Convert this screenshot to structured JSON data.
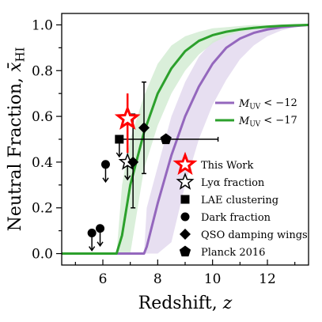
{
  "chart_data": {
    "type": "line",
    "xlabel": "Redshift, z",
    "ylabel": "Neutral Fraction, x̄_HI",
    "xlim": [
      4.5,
      13.5
    ],
    "ylim": [
      -0.05,
      1.05
    ],
    "x_ticks": [
      6,
      8,
      10,
      12
    ],
    "x_tick_labels": [
      "6",
      "8",
      "10",
      "12"
    ],
    "y_ticks": [
      0.0,
      0.2,
      0.4,
      0.6,
      0.8,
      1.0
    ],
    "y_tick_labels": [
      "0.0",
      "0.2",
      "0.4",
      "0.6",
      "0.8",
      "1.0"
    ],
    "grid": false,
    "series": [
      {
        "name": "M_UV < −12",
        "color": "#9467bd",
        "band_color": "#e3d9ee",
        "x": [
          4.5,
          7.5,
          7.6,
          8.0,
          8.5,
          9.0,
          9.5,
          10.0,
          10.5,
          11.0,
          11.5,
          12.0,
          12.5,
          13.0,
          13.5
        ],
        "y": [
          0.0,
          0.0,
          0.03,
          0.22,
          0.43,
          0.6,
          0.73,
          0.83,
          0.9,
          0.94,
          0.965,
          0.98,
          0.99,
          0.995,
          1.0
        ],
        "band_lower": [
          0.0,
          0.0,
          0.0,
          0.0,
          0.05,
          0.3,
          0.5,
          0.65,
          0.76,
          0.85,
          0.91,
          0.95,
          0.975,
          0.99,
          1.0
        ],
        "band_upper": [
          0.0,
          0.0,
          0.2,
          0.38,
          0.6,
          0.75,
          0.86,
          0.93,
          0.96,
          0.98,
          0.99,
          0.995,
          1.0,
          1.0,
          1.0
        ]
      },
      {
        "name": "M_UV < −17",
        "color": "#2ca02c",
        "band_color": "#d3ecd3",
        "x": [
          4.5,
          6.5,
          6.7,
          7.0,
          7.5,
          8.0,
          8.5,
          9.0,
          9.5,
          10.0,
          10.5,
          11.0,
          11.5,
          12.0,
          12.5,
          13.0,
          13.5
        ],
        "y": [
          0.0,
          0.0,
          0.08,
          0.3,
          0.53,
          0.7,
          0.81,
          0.885,
          0.93,
          0.955,
          0.97,
          0.98,
          0.987,
          0.992,
          0.996,
          0.998,
          1.0
        ],
        "band_lower": [
          0.0,
          0.0,
          0.0,
          0.0,
          0.37,
          0.56,
          0.7,
          0.8,
          0.87,
          0.92,
          0.95,
          0.97,
          0.98,
          0.99,
          0.995,
          0.998,
          1.0
        ],
        "band_upper": [
          0.0,
          0.0,
          0.3,
          0.5,
          0.69,
          0.83,
          0.91,
          0.95,
          0.97,
          0.985,
          0.99,
          0.995,
          1.0,
          1.0,
          1.0,
          1.0,
          1.0
        ]
      }
    ],
    "points": [
      {
        "category": "This Work",
        "marker": "star-red",
        "x": 6.9,
        "y": 0.59,
        "yerr_low": 0.15,
        "yerr_high": 0.11
      },
      {
        "category": "Lyα fraction",
        "marker": "star-open",
        "x": 6.9,
        "y": 0.4,
        "upper": true
      },
      {
        "category": "LAE clustering",
        "marker": "square",
        "x": 6.6,
        "y": 0.5,
        "upper": true
      },
      {
        "category": "Dark fraction",
        "marker": "circle",
        "x": 5.6,
        "y": 0.09,
        "upper": true
      },
      {
        "category": "Dark fraction",
        "marker": "circle",
        "x": 5.9,
        "y": 0.11,
        "upper": true
      },
      {
        "category": "Dark fraction",
        "marker": "circle",
        "x": 6.1,
        "y": 0.39,
        "upper": true
      },
      {
        "category": "QSO damping wings",
        "marker": "diamond",
        "x": 7.1,
        "y": 0.4,
        "yerr_low": 0.2,
        "yerr_high": 0.21
      },
      {
        "category": "QSO damping wings",
        "marker": "diamond",
        "x": 7.5,
        "y": 0.55,
        "yerr_low": 0.2,
        "yerr_high": 0.2
      },
      {
        "category": "Planck 2016",
        "marker": "pentagon",
        "x": 8.3,
        "y": 0.5,
        "xerr_low": 1.6,
        "xerr_high": 1.9
      }
    ],
    "legend_lines": {
      "placement": "center-right",
      "entries": [
        {
          "label": "M_UV < −12",
          "color": "#9467bd"
        },
        {
          "label": "M_UV < −17",
          "color": "#2ca02c"
        }
      ]
    },
    "legend_markers": {
      "placement": "lower-right",
      "entries": [
        {
          "label": "This Work",
          "marker": "star-red"
        },
        {
          "label": "Lyα fraction",
          "marker": "star-open"
        },
        {
          "label": "LAE clustering",
          "marker": "square"
        },
        {
          "label": "Dark fraction",
          "marker": "circle"
        },
        {
          "label": "QSO damping wings",
          "marker": "diamond"
        },
        {
          "label": "Planck 2016",
          "marker": "pentagon"
        }
      ]
    }
  }
}
